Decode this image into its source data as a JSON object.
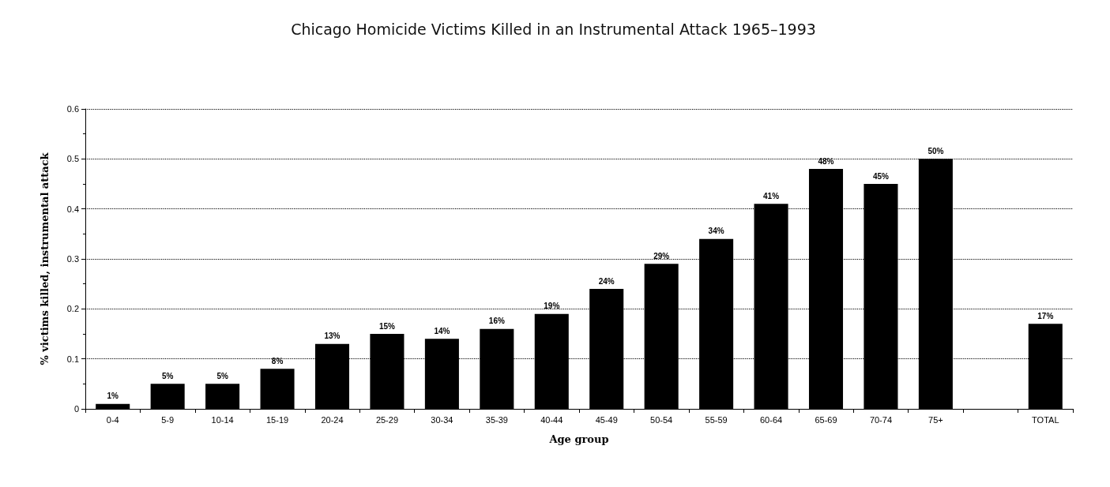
{
  "chart_data": {
    "type": "bar",
    "title": "Chicago Homicide Victims Killed in an Instrumental Attack 1965–1993",
    "xlabel": "Age group",
    "ylabel": "% victims killed, instrumental attack",
    "categories": [
      "0-4",
      "5-9",
      "10-14",
      "15-19",
      "20-24",
      "25-29",
      "30-34",
      "35-39",
      "40-44",
      "45-49",
      "50-54",
      "55-59",
      "60-64",
      "65-69",
      "70-74",
      "75+",
      null,
      "TOTAL"
    ],
    "values": [
      0.01,
      0.05,
      0.05,
      0.08,
      0.13,
      0.15,
      0.14,
      0.16,
      0.19,
      0.24,
      0.29,
      0.34,
      0.41,
      0.48,
      0.45,
      0.5,
      null,
      0.17
    ],
    "value_labels": [
      "1%",
      "5%",
      "5%",
      "8%",
      "13%",
      "15%",
      "14%",
      "16%",
      "19%",
      "24%",
      "29%",
      "34%",
      "41%",
      "48%",
      "45%",
      "50%",
      null,
      "17%"
    ],
    "color": "#000000",
    "ylim": [
      0,
      0.6
    ],
    "yticks": [
      0,
      0.1,
      0.2,
      0.3,
      0.4,
      0.5,
      0.6
    ],
    "grid": "y",
    "line_style": "dotted"
  }
}
